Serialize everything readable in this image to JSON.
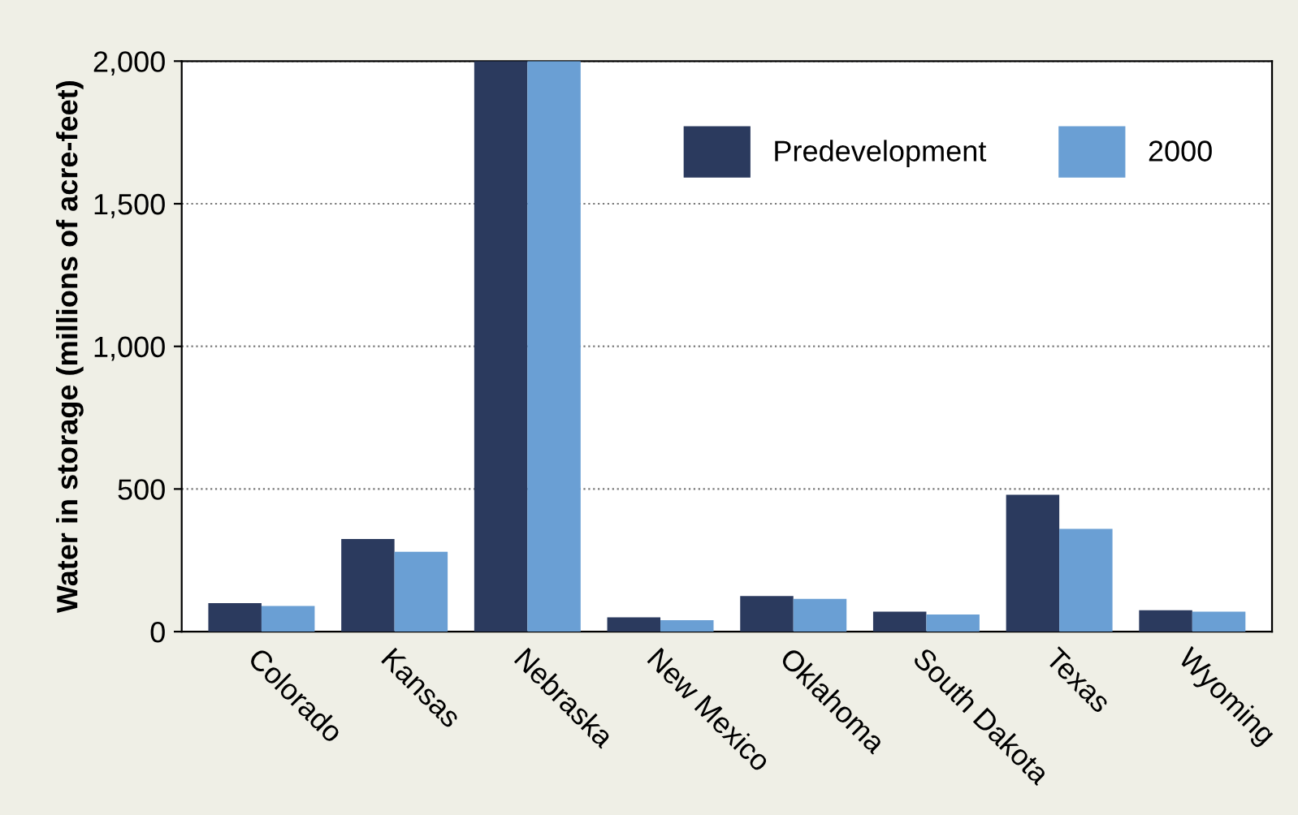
{
  "chart_data": {
    "type": "bar",
    "ylabel": "Water in storage (millions of acre-feet)",
    "categories": [
      "Colorado",
      "Kansas",
      "Nebraska",
      "New Mexico",
      "Oklahoma",
      "South Dakota",
      "Texas",
      "Wyoming"
    ],
    "series": [
      {
        "name": "Predevelopment",
        "color": "#2b3a5e",
        "values": [
          100,
          325,
          2000,
          50,
          125,
          70,
          480,
          75
        ]
      },
      {
        "name": "2000",
        "color": "#6a9fd4",
        "values": [
          90,
          280,
          2000,
          40,
          115,
          60,
          360,
          70
        ]
      }
    ],
    "ylim": [
      0,
      2000
    ],
    "yticks": [
      0,
      {
        "value": 500,
        "label": "500"
      },
      {
        "value": 1000,
        "label": "1,000"
      },
      {
        "value": 1500,
        "label": "1,500"
      },
      {
        "value": 2000,
        "label": "2,000"
      }
    ],
    "grid": "y",
    "legend": "top right"
  }
}
